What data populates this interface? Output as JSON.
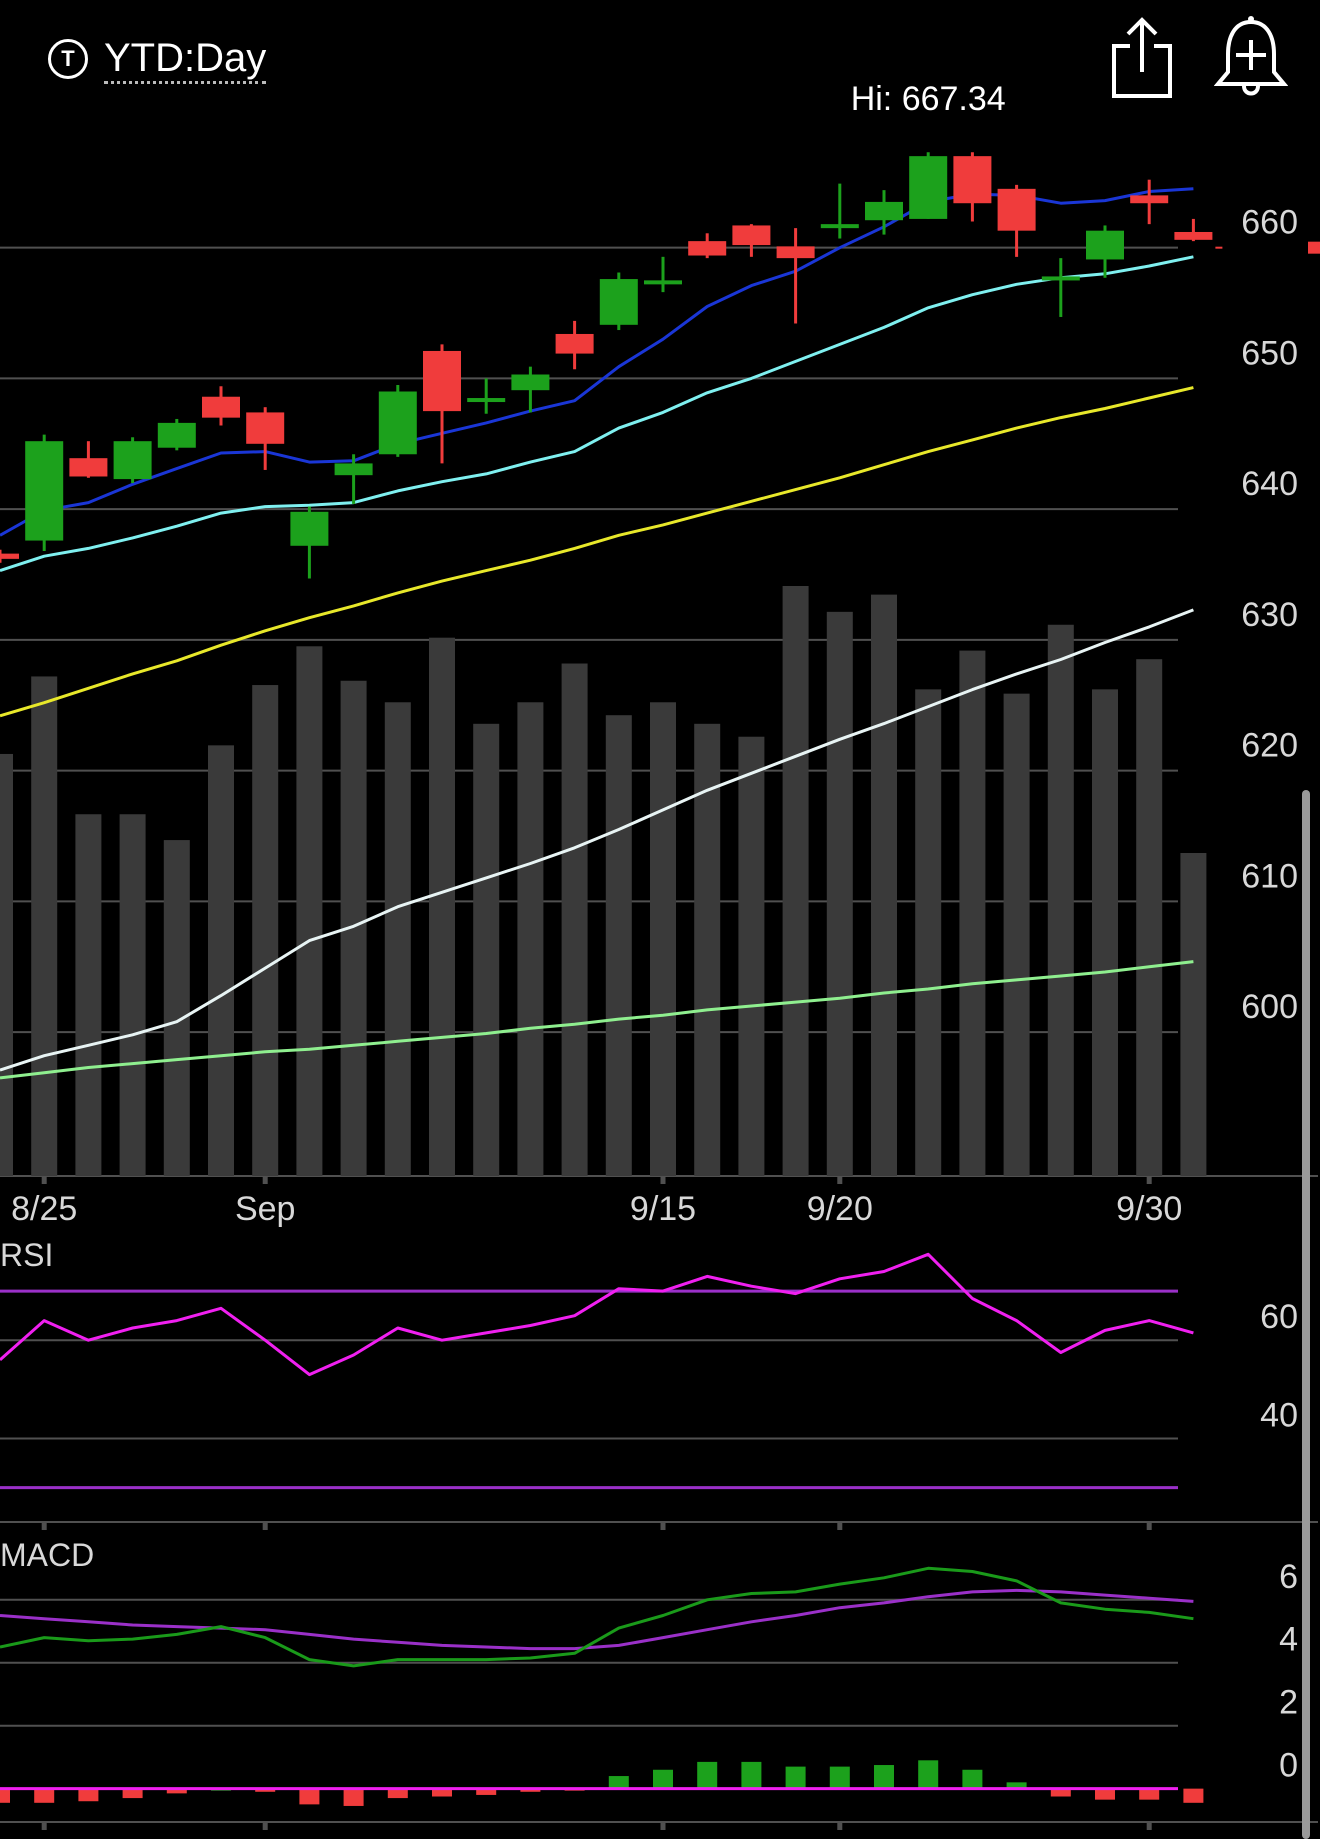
{
  "header": {
    "range_icon_glyph": "T",
    "range_label": "YTD:Day",
    "share_icon": "share-icon",
    "alert_icon": "add-alert-bell-icon"
  },
  "colors": {
    "background": "#000000",
    "up": "#1ca11c",
    "down": "#f03c3c",
    "ma_fast": "#1a36d6",
    "ma_mid": "#7ff0f0",
    "ma_slow": "#e8e82a",
    "ma_vol_white": "#e8f4f4",
    "ma_vol_green": "#8fef8f",
    "volume": "#3a3a3a",
    "grid": "#505050",
    "rsi": "#f020f0",
    "rsi_bands": "#9a30c8",
    "macd_line": "#1a9a1a",
    "macd_signal": "#9a30c8",
    "macd_zero": "#f020f0"
  },
  "chart_data": [
    {
      "type": "candlestick",
      "hi_label": "Hi: 667.34",
      "ylim": [
        589,
        669
      ],
      "y_ticks": [
        660,
        650,
        640,
        630,
        620,
        610,
        600
      ],
      "x_tick_labels": [
        {
          "index": 1,
          "label": "8/25"
        },
        {
          "index": 6,
          "label": "Sep"
        },
        {
          "index": 15,
          "label": "9/15"
        },
        {
          "index": 19,
          "label": "9/20"
        },
        {
          "index": 26,
          "label": "9/30"
        }
      ],
      "last_price": 660,
      "candles": [
        {
          "o": 636.6,
          "h": 636.9,
          "l": 635.9,
          "c": 636.2
        },
        {
          "o": 637.6,
          "h": 645.7,
          "l": 636.8,
          "c": 645.2
        },
        {
          "o": 643.9,
          "h": 645.2,
          "l": 642.4,
          "c": 642.5
        },
        {
          "o": 642.3,
          "h": 645.5,
          "l": 642.0,
          "c": 645.2
        },
        {
          "o": 644.7,
          "h": 646.9,
          "l": 644.5,
          "c": 646.6
        },
        {
          "o": 648.6,
          "h": 649.4,
          "l": 646.4,
          "c": 647.0
        },
        {
          "o": 647.4,
          "h": 647.8,
          "l": 643.0,
          "c": 645.0
        },
        {
          "o": 637.2,
          "h": 640.2,
          "l": 634.7,
          "c": 639.8
        },
        {
          "o": 642.6,
          "h": 644.2,
          "l": 640.4,
          "c": 643.5
        },
        {
          "o": 644.2,
          "h": 649.5,
          "l": 644.0,
          "c": 649.0
        },
        {
          "o": 652.1,
          "h": 652.6,
          "l": 643.5,
          "c": 647.5
        },
        {
          "o": 648.5,
          "h": 650.0,
          "l": 647.3,
          "c": 648.5
        },
        {
          "o": 649.1,
          "h": 650.9,
          "l": 647.4,
          "c": 650.3
        },
        {
          "o": 653.4,
          "h": 654.4,
          "l": 650.7,
          "c": 651.9
        },
        {
          "o": 654.1,
          "h": 658.1,
          "l": 653.7,
          "c": 657.6
        },
        {
          "o": 657.5,
          "h": 659.3,
          "l": 656.6,
          "c": 657.5
        },
        {
          "o": 660.5,
          "h": 661.1,
          "l": 659.2,
          "c": 659.4
        },
        {
          "o": 661.7,
          "h": 661.8,
          "l": 659.3,
          "c": 660.2
        },
        {
          "o": 660.1,
          "h": 661.5,
          "l": 654.2,
          "c": 659.2
        },
        {
          "o": 661.8,
          "h": 664.9,
          "l": 660.7,
          "c": 661.8
        },
        {
          "o": 662.1,
          "h": 664.4,
          "l": 661.0,
          "c": 663.5
        },
        {
          "o": 662.2,
          "h": 667.3,
          "l": 662.2,
          "c": 667.0
        },
        {
          "o": 667.0,
          "h": 667.3,
          "l": 662.0,
          "c": 663.4
        },
        {
          "o": 664.5,
          "h": 664.8,
          "l": 659.3,
          "c": 661.3
        },
        {
          "o": 657.8,
          "h": 659.2,
          "l": 654.7,
          "c": 657.8
        },
        {
          "o": 659.1,
          "h": 661.7,
          "l": 657.7,
          "c": 661.3
        },
        {
          "o": 664.0,
          "h": 665.2,
          "l": 661.8,
          "c": 663.4
        },
        {
          "o": 661.2,
          "h": 662.2,
          "l": 660.5,
          "c": 660.6
        }
      ],
      "ma_fast": [
        638.0,
        639.9,
        640.5,
        641.9,
        643.1,
        644.3,
        644.4,
        643.6,
        643.7,
        645.0,
        645.8,
        646.6,
        647.5,
        648.3,
        650.9,
        653.0,
        655.5,
        657.1,
        658.2,
        660.0,
        661.6,
        663.5,
        664.1,
        664.0,
        663.4,
        663.6,
        664.3,
        664.5
      ],
      "ma_mid": [
        635.3,
        636.4,
        637.0,
        637.8,
        638.7,
        639.7,
        640.2,
        640.3,
        640.5,
        641.4,
        642.1,
        642.7,
        643.6,
        644.4,
        646.2,
        647.4,
        648.9,
        650.0,
        651.3,
        652.6,
        653.9,
        655.4,
        656.4,
        657.2,
        657.7,
        658.0,
        658.6,
        659.3
      ],
      "ma_slow": [
        624.2,
        625.2,
        626.3,
        627.4,
        628.4,
        629.6,
        630.7,
        631.7,
        632.6,
        633.6,
        634.5,
        635.3,
        636.1,
        637.0,
        638.0,
        638.8,
        639.7,
        640.6,
        641.5,
        642.4,
        643.4,
        644.4,
        645.3,
        646.2,
        647.0,
        647.7,
        648.5,
        649.3
      ],
      "volumes": [
        98,
        116,
        84,
        84,
        78,
        100,
        114,
        123,
        115,
        110,
        125,
        105,
        110,
        119,
        107,
        110,
        105,
        102,
        137,
        131,
        135,
        113,
        122,
        112,
        128,
        113,
        120,
        75
      ],
      "volume_ma_white": [
        597.1,
        598.2,
        599.0,
        599.8,
        600.8,
        602.8,
        604.9,
        607.0,
        608.1,
        609.6,
        610.7,
        611.8,
        612.9,
        614.1,
        615.5,
        617.0,
        618.5,
        619.8,
        621.1,
        622.4,
        623.6,
        624.9,
        626.2,
        627.4,
        628.5,
        629.8,
        631.0,
        632.3
      ],
      "volume_ma_green": [
        596.5,
        596.9,
        597.3,
        597.6,
        597.9,
        598.2,
        598.5,
        598.7,
        599.0,
        599.3,
        599.6,
        599.9,
        600.3,
        600.6,
        601.0,
        601.3,
        601.7,
        602.0,
        602.3,
        602.6,
        603.0,
        603.3,
        603.7,
        604.0,
        604.3,
        604.6,
        605.0,
        605.4
      ]
    },
    {
      "type": "line",
      "name": "RSI",
      "ylim": [
        23,
        80
      ],
      "y_ticks": [
        60,
        40
      ],
      "bands": [
        70,
        30
      ],
      "values": [
        56,
        64,
        60,
        62.5,
        64,
        66.5,
        60,
        53,
        57,
        62.5,
        60,
        61.5,
        63,
        65,
        70.5,
        70,
        73,
        71,
        69.5,
        72.5,
        74,
        77.5,
        68.5,
        64,
        57.5,
        62,
        64,
        61.5
      ]
    },
    {
      "type": "line",
      "name": "MACD",
      "ylim": [
        -1.6,
        7.9
      ],
      "y_ticks": [
        6,
        4,
        2,
        0
      ],
      "macd": [
        4.5,
        4.8,
        4.7,
        4.75,
        4.9,
        5.15,
        4.8,
        4.1,
        3.9,
        4.1,
        4.1,
        4.1,
        4.15,
        4.3,
        5.1,
        5.5,
        6.0,
        6.2,
        6.25,
        6.5,
        6.7,
        7.0,
        6.9,
        6.6,
        5.9,
        5.7,
        5.6,
        5.4
      ],
      "signal": [
        5.5,
        5.4,
        5.3,
        5.2,
        5.15,
        5.1,
        5.05,
        4.9,
        4.75,
        4.65,
        4.55,
        4.5,
        4.45,
        4.45,
        4.55,
        4.8,
        5.05,
        5.3,
        5.5,
        5.75,
        5.9,
        6.1,
        6.25,
        6.3,
        6.25,
        6.15,
        6.05,
        5.95
      ],
      "histogram": [
        -0.45,
        -0.45,
        -0.4,
        -0.3,
        -0.15,
        0,
        -0.1,
        -0.5,
        -0.55,
        -0.3,
        -0.25,
        -0.2,
        -0.1,
        -0.05,
        0.4,
        0.6,
        0.85,
        0.85,
        0.7,
        0.7,
        0.75,
        0.9,
        0.6,
        0.2,
        -0.25,
        -0.35,
        -0.35,
        -0.45
      ]
    }
  ]
}
